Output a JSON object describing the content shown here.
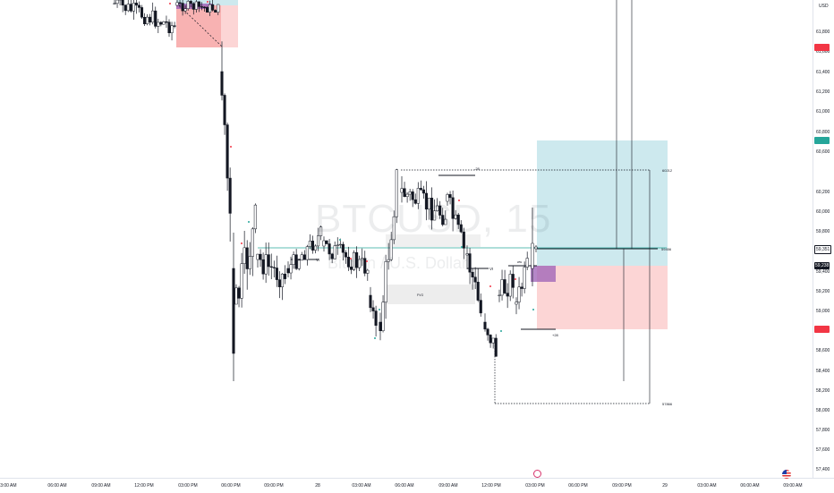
{
  "watermark": {
    "symbol": "BTCUSD, 15",
    "name": "Bitcoin / U.S. Dollar"
  },
  "price_axis": {
    "currency": "USD",
    "ticks": [
      "61,800",
      "61,600",
      "61,400",
      "61,200",
      "61,000",
      "60,800",
      "60,600",
      "60,200",
      "60,000",
      "59,800",
      "59,600",
      "59,400",
      "59,200",
      "59,000",
      "58,800",
      "58,600",
      "58,400",
      "58,200",
      "58,000",
      "57,800",
      "57,600",
      "57,400",
      "57,200"
    ],
    "labels": [
      {
        "text": "61,455",
        "color": "#f23645"
      },
      {
        "text": "60,509",
        "color": "#26a69a"
      },
      {
        "text": "59,351",
        "color": "#131722"
      },
      {
        "text": "59,238",
        "color": "#ffffff"
      },
      {
        "text": "58,621",
        "color": "#f23645"
      }
    ]
  },
  "time_axis": {
    "ticks": [
      "03:00 AM",
      "06:00 AM",
      "09:00 AM",
      "12:00 PM",
      "03:00 PM",
      "06:00 PM",
      "09:00 PM",
      "28",
      "03:00 AM",
      "06:00 AM",
      "09:00 AM",
      "12:00 PM",
      "03:00 PM",
      "06:00 PM",
      "09:00 PM",
      "29",
      "03:00 AM",
      "06:00 AM",
      "09:00 AM"
    ]
  },
  "annotations": {
    "level_top": "60212",
    "level_bottom": "57866",
    "target_right": "59456",
    "vi_left": "VI",
    "vi_right": "VI",
    "fvg_label": "FVG",
    "small_label_a": "+28",
    "small_label_b": "-28",
    "small_label_c": "ww"
  },
  "colors": {
    "bull": "#ffffff",
    "bear": "#131722",
    "target_zone": "#cde9ee",
    "stop_zone": "#fcd5d5",
    "accent_teal": "#26a69a",
    "accent_red": "#f23645",
    "purple": "#9c5fb5"
  },
  "icons": {
    "events": "lightning-icon",
    "region": "us-flag-icon"
  }
}
